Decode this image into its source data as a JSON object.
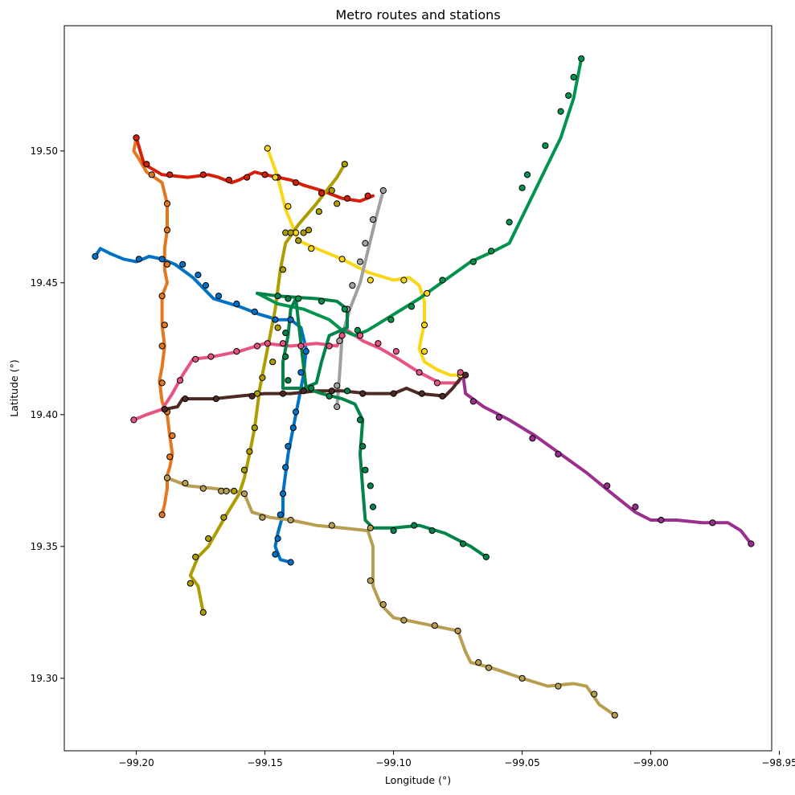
{
  "chart_data": {
    "type": "line",
    "title": "Metro routes and stations",
    "xlabel": "Longitude (°)",
    "ylabel": "Latitude (°)",
    "xlim": [
      -99.228,
      -98.953
    ],
    "ylim": [
      19.2725,
      19.5475
    ],
    "xticks": [
      -99.2,
      -99.15,
      -99.1,
      -99.05,
      -99.0,
      -98.95
    ],
    "xtick_labels": [
      "−99.20",
      "−99.15",
      "−99.10",
      "−99.05",
      "−99.00",
      "−98.95"
    ],
    "yticks": [
      19.3,
      19.35,
      19.4,
      19.45,
      19.5
    ],
    "ytick_labels": [
      "19.30",
      "19.35",
      "19.40",
      "19.45",
      "19.50"
    ],
    "grid": false,
    "legend": "none",
    "series": [
      {
        "color": "#E3781F",
        "x": [
          -99.2,
          -99.201,
          -99.199,
          -99.196,
          -99.19,
          -99.188,
          -99.188,
          -99.189,
          -99.189,
          -99.188,
          -99.19,
          -99.19,
          -99.189,
          -99.19,
          -99.191,
          -99.19,
          -99.188,
          -99.187,
          -99.186,
          -99.187,
          -99.188,
          -99.188,
          -99.189,
          -99.19
        ],
        "y": [
          19.505,
          19.5,
          19.497,
          19.492,
          19.488,
          19.48,
          19.47,
          19.463,
          19.455,
          19.45,
          19.445,
          19.434,
          19.426,
          19.418,
          19.413,
          19.405,
          19.4,
          19.392,
          19.385,
          19.38,
          19.377,
          19.372,
          19.366,
          19.362
        ],
        "stations_x": [
          -99.2,
          -99.194,
          -99.188,
          -99.188,
          -99.188,
          -99.19,
          -99.189,
          -99.19,
          -99.19,
          -99.188,
          -99.186,
          -99.187,
          -99.188,
          -99.19
        ],
        "stations_y": [
          19.505,
          19.491,
          19.48,
          19.47,
          19.457,
          19.445,
          19.434,
          19.426,
          19.412,
          19.401,
          19.392,
          19.384,
          19.376,
          19.362
        ]
      },
      {
        "color": "#D81E05",
        "x": [
          -99.2,
          -99.197,
          -99.19,
          -99.18,
          -99.172,
          -99.168,
          -99.163,
          -99.16,
          -99.154,
          -99.15,
          -99.145,
          -99.14,
          -99.135,
          -99.128,
          -99.12,
          -99.113,
          -99.108
        ],
        "y": [
          19.505,
          19.495,
          19.491,
          19.49,
          19.491,
          19.49,
          19.488,
          19.489,
          19.492,
          19.491,
          19.49,
          19.489,
          19.487,
          19.485,
          19.482,
          19.481,
          19.483
        ],
        "stations_x": [
          -99.2,
          -99.196,
          -99.187,
          -99.174,
          -99.164,
          -99.157,
          -99.15,
          -99.145,
          -99.138,
          -99.128,
          -99.118,
          -99.11
        ],
        "stations_y": [
          19.505,
          19.495,
          19.491,
          19.491,
          19.489,
          19.49,
          19.491,
          19.49,
          19.488,
          19.484,
          19.482,
          19.483
        ]
      },
      {
        "color": "#F9D616",
        "x": [
          -99.149,
          -99.145,
          -99.142,
          -99.137,
          -99.13,
          -99.12,
          -99.11,
          -99.1,
          -99.094,
          -99.09,
          -99.088,
          -99.088,
          -99.09,
          -99.088,
          -99.083,
          -99.078,
          -99.074
        ],
        "y": [
          19.501,
          19.49,
          19.478,
          19.466,
          19.463,
          19.459,
          19.454,
          19.451,
          19.452,
          19.449,
          19.443,
          19.435,
          19.425,
          19.42,
          19.417,
          19.415,
          19.415
        ],
        "stations_x": [
          -99.149,
          -99.146,
          -99.141,
          -99.138,
          -99.132,
          -99.12,
          -99.109,
          -99.096,
          -99.087,
          -99.088,
          -99.088,
          -99.074
        ],
        "stations_y": [
          19.501,
          19.49,
          19.479,
          19.469,
          19.463,
          19.459,
          19.451,
          19.451,
          19.446,
          19.434,
          19.424,
          19.415
        ]
      },
      {
        "color": "#0072C6",
        "x": [
          -99.216,
          -99.214,
          -99.21,
          -99.205,
          -99.2,
          -99.195,
          -99.19,
          -99.185,
          -99.178,
          -99.17,
          -99.16,
          -99.152,
          -99.145,
          -99.14,
          -99.136,
          -99.134,
          -99.135,
          -99.137,
          -99.139,
          -99.141,
          -99.143,
          -99.143,
          -99.145,
          -99.146,
          -99.144,
          -99.14
        ],
        "y": [
          19.46,
          19.463,
          19.461,
          19.459,
          19.458,
          19.46,
          19.459,
          19.457,
          19.452,
          19.444,
          19.441,
          19.438,
          19.436,
          19.436,
          19.433,
          19.425,
          19.415,
          19.405,
          19.395,
          19.385,
          19.37,
          19.362,
          19.355,
          19.35,
          19.345,
          19.344
        ],
        "stations_x": [
          -99.216,
          -99.199,
          -99.19,
          -99.182,
          -99.176,
          -99.173,
          -99.168,
          -99.161,
          -99.154,
          -99.146,
          -99.14,
          -99.134,
          -99.136,
          -99.138,
          -99.139,
          -99.141,
          -99.142,
          -99.143,
          -99.144,
          -99.145,
          -99.146,
          -99.14
        ],
        "stations_y": [
          19.46,
          19.459,
          19.459,
          19.457,
          19.453,
          19.449,
          19.445,
          19.442,
          19.439,
          19.436,
          19.436,
          19.424,
          19.416,
          19.401,
          19.395,
          19.388,
          19.38,
          19.37,
          19.362,
          19.353,
          19.347,
          19.344
        ]
      },
      {
        "color": "#AE9D00",
        "x": [
          -99.119,
          -99.122,
          -99.13,
          -99.137,
          -99.142,
          -99.144,
          -99.146,
          -99.149,
          -99.152,
          -99.154,
          -99.156,
          -99.158,
          -99.16,
          -99.165,
          -99.172,
          -99.176,
          -99.179,
          -99.176,
          -99.174
        ],
        "y": [
          19.495,
          19.49,
          19.48,
          19.472,
          19.465,
          19.455,
          19.44,
          19.425,
          19.41,
          19.395,
          19.385,
          19.376,
          19.37,
          19.362,
          19.35,
          19.346,
          19.339,
          19.335,
          19.325
        ],
        "stations_x": [
          -99.119,
          -99.124,
          -99.129,
          -99.135,
          -99.142,
          -99.143,
          -99.145,
          -99.147,
          -99.151,
          -99.153,
          -99.154,
          -99.156,
          -99.158,
          -99.162,
          -99.166,
          -99.172,
          -99.177,
          -99.179,
          -99.174
        ],
        "stations_y": [
          19.495,
          19.485,
          19.477,
          19.469,
          19.469,
          19.455,
          19.433,
          19.42,
          19.414,
          19.408,
          19.395,
          19.386,
          19.379,
          19.371,
          19.361,
          19.353,
          19.346,
          19.336,
          19.325
        ],
        "extra_stations_x": [
          -99.14,
          -99.137,
          -99.133,
          -99.122
        ],
        "extra_stations_y": [
          19.469,
          19.466,
          19.47,
          19.48
        ]
      },
      {
        "color": "#A0A0A0",
        "x": [
          -99.104,
          -99.107,
          -99.11,
          -99.113,
          -99.117,
          -99.12,
          -99.121,
          -99.122
        ],
        "y": [
          19.485,
          19.474,
          19.462,
          19.45,
          19.44,
          19.43,
          19.415,
          19.403
        ],
        "stations_x": [
          -99.104,
          -99.108,
          -99.111,
          -99.113,
          -99.116,
          -99.118,
          -99.121,
          -99.122,
          -99.122
        ],
        "stations_y": [
          19.485,
          19.474,
          19.465,
          19.458,
          19.449,
          19.44,
          19.428,
          19.411,
          19.403
        ]
      },
      {
        "color": "#E75480",
        "x": [
          -99.201,
          -99.196,
          -99.19,
          -99.186,
          -99.182,
          -99.178,
          -99.17,
          -99.16,
          -99.15,
          -99.14,
          -99.13,
          -99.122,
          -99.12,
          -99.118,
          -99.112,
          -99.105,
          -99.098,
          -99.09,
          -99.082,
          -99.075,
          -99.073
        ],
        "y": [
          19.398,
          19.4,
          19.402,
          19.408,
          19.415,
          19.421,
          19.422,
          19.424,
          19.427,
          19.426,
          19.427,
          19.426,
          19.431,
          19.432,
          19.428,
          19.425,
          19.421,
          19.416,
          19.412,
          19.412,
          19.415
        ],
        "stations_x": [
          -99.201,
          -99.189,
          -99.183,
          -99.177,
          -99.171,
          -99.161,
          -99.153,
          -99.149,
          -99.143,
          -99.136,
          -99.125,
          -99.12,
          -99.113,
          -99.106,
          -99.099,
          -99.09,
          -99.083,
          -99.074
        ],
        "stations_y": [
          19.398,
          19.402,
          19.413,
          19.421,
          19.422,
          19.424,
          19.426,
          19.427,
          19.427,
          19.426,
          19.426,
          19.43,
          19.43,
          19.427,
          19.424,
          19.416,
          19.412,
          19.416
        ]
      },
      {
        "color": "#4E2A24",
        "x": [
          -99.189,
          -99.184,
          -99.182,
          -99.17,
          -99.16,
          -99.15,
          -99.14,
          -99.13,
          -99.12,
          -99.11,
          -99.1,
          -99.095,
          -99.09,
          -99.08,
          -99.077,
          -99.073
        ],
        "y": [
          19.402,
          19.403,
          19.406,
          19.406,
          19.407,
          19.408,
          19.408,
          19.409,
          19.409,
          19.408,
          19.408,
          19.41,
          19.408,
          19.407,
          19.41,
          19.415
        ],
        "stations_x": [
          -99.189,
          -99.181,
          -99.169,
          -99.155,
          -99.143,
          -99.135,
          -99.124,
          -99.112,
          -99.1,
          -99.089,
          -99.081,
          -99.072
        ],
        "stations_y": [
          19.402,
          19.406,
          19.406,
          19.407,
          19.408,
          19.409,
          19.409,
          19.408,
          19.408,
          19.408,
          19.407,
          19.415
        ]
      },
      {
        "color": "#9B2F8E",
        "x": [
          -99.073,
          -99.072,
          -99.065,
          -99.055,
          -99.045,
          -99.035,
          -99.025,
          -99.015,
          -99.006,
          -99.0,
          -98.99,
          -98.98,
          -98.97,
          -98.965,
          -98.961
        ],
        "y": [
          19.415,
          19.408,
          19.403,
          19.398,
          19.392,
          19.385,
          19.378,
          19.37,
          19.363,
          19.36,
          19.36,
          19.359,
          19.359,
          19.356,
          19.351
        ],
        "stations_x": [
          -99.069,
          -99.059,
          -99.046,
          -99.036,
          -99.017,
          -99.006,
          -98.996,
          -98.976,
          -98.961
        ],
        "stations_y": [
          19.405,
          19.399,
          19.391,
          19.385,
          19.373,
          19.365,
          19.36,
          19.359,
          19.351
        ]
      },
      {
        "color": "#00944E",
        "x": [
          -99.027,
          -99.03,
          -99.035,
          -99.045,
          -99.055,
          -99.061,
          -99.07,
          -99.08,
          -99.09,
          -99.1,
          -99.11,
          -99.115,
          -99.12,
          -99.125,
          -99.135,
          -99.145,
          -99.153
        ],
        "y": [
          19.535,
          19.52,
          19.505,
          19.485,
          19.465,
          19.462,
          19.458,
          19.451,
          19.444,
          19.438,
          19.432,
          19.43,
          19.432,
          19.436,
          19.44,
          19.442,
          19.446
        ],
        "stations_x": [
          -99.027,
          -99.03,
          -99.032,
          -99.035,
          -99.041,
          -99.048,
          -99.05,
          -99.055,
          -99.062,
          -99.069,
          -99.081,
          -99.093,
          -99.101,
          -99.114,
          -99.119,
          -99.128,
          -99.137
        ],
        "stations_y": [
          19.535,
          19.528,
          19.521,
          19.515,
          19.502,
          19.491,
          19.486,
          19.473,
          19.462,
          19.458,
          19.451,
          19.441,
          19.436,
          19.432,
          19.44,
          19.443,
          19.444
        ]
      },
      {
        "color": "#00844A",
        "x": [
          -99.153,
          -99.145,
          -99.13,
          -99.122,
          -99.118,
          -99.118,
          -99.125,
          -99.128,
          -99.13,
          -99.135,
          -99.14,
          -99.143,
          -99.143,
          -99.141,
          -99.14,
          -99.138,
          -99.134,
          -99.128,
          -99.12,
          -99.115,
          -99.112,
          -99.113,
          -99.112,
          -99.111,
          -99.108,
          -99.1,
          -99.09,
          -99.08,
          -99.07,
          -99.064
        ],
        "y": [
          19.446,
          19.445,
          19.444,
          19.443,
          19.44,
          19.433,
          19.43,
          19.42,
          19.412,
          19.41,
          19.41,
          19.41,
          19.42,
          19.43,
          19.44,
          19.444,
          19.41,
          19.408,
          19.406,
          19.404,
          19.398,
          19.385,
          19.372,
          19.36,
          19.357,
          19.357,
          19.358,
          19.355,
          19.35,
          19.346
        ],
        "stations_x": [
          -99.145,
          -99.141,
          -99.142,
          -99.142,
          -99.141,
          -99.132,
          -99.125,
          -99.118,
          -99.113,
          -99.112,
          -99.111,
          -99.109,
          -99.108,
          -99.1,
          -99.092,
          -99.085,
          -99.073,
          -99.064
        ],
        "stations_y": [
          19.445,
          19.444,
          19.431,
          19.422,
          19.413,
          19.41,
          19.407,
          19.409,
          19.398,
          19.388,
          19.379,
          19.373,
          19.365,
          19.356,
          19.358,
          19.356,
          19.351,
          19.346
        ]
      },
      {
        "color": "#B99E51",
        "x": [
          -99.188,
          -99.18,
          -99.17,
          -99.162,
          -99.158,
          -99.155,
          -99.148,
          -99.14,
          -99.13,
          -99.12,
          -99.11,
          -99.108,
          -99.108,
          -99.105,
          -99.1,
          -99.09,
          -99.075,
          -99.072,
          -99.07,
          -99.062,
          -99.05,
          -99.04,
          -99.03,
          -99.025,
          -99.02,
          -99.014
        ],
        "y": [
          19.376,
          19.373,
          19.372,
          19.371,
          19.37,
          19.363,
          19.361,
          19.36,
          19.358,
          19.357,
          19.356,
          19.35,
          19.335,
          19.328,
          19.323,
          19.321,
          19.318,
          19.31,
          19.306,
          19.304,
          19.3,
          19.297,
          19.298,
          19.297,
          19.29,
          19.286
        ],
        "stations_x": [
          -99.188,
          -99.181,
          -99.174,
          -99.167,
          -99.165,
          -99.158,
          -99.151,
          -99.14,
          -99.124,
          -99.109,
          -99.109,
          -99.104,
          -99.096,
          -99.084,
          -99.075,
          -99.067,
          -99.063,
          -99.05,
          -99.036,
          -99.022,
          -99.014
        ],
        "stations_y": [
          19.376,
          19.374,
          19.372,
          19.371,
          19.371,
          19.37,
          19.361,
          19.36,
          19.358,
          19.357,
          19.337,
          19.328,
          19.322,
          19.32,
          19.318,
          19.306,
          19.304,
          19.3,
          19.297,
          19.294,
          19.286
        ]
      }
    ]
  }
}
